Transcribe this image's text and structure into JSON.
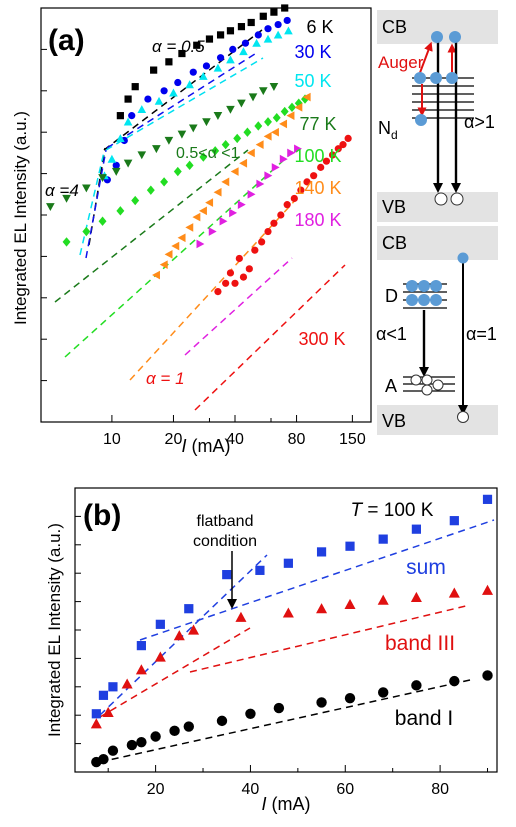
{
  "chart_data": [
    {
      "type": "scatter",
      "panel_label": "(a)",
      "xlabel_italic": "I",
      "xlabel_rest": " (mA)",
      "ylabel": "Integrated EL Intensity (a.u.)",
      "x_scale": "log",
      "xlim": [
        4.5,
        185
      ],
      "ylim": [
        0,
        10
      ],
      "x_ticks": [
        10,
        20,
        40,
        80,
        150
      ],
      "x_tick_labels": [
        "10",
        "20",
        "40",
        "80",
        "150"
      ],
      "series": [
        {
          "name": "6 K",
          "color": "#000000",
          "marker": "square",
          "points": [
            [
              11,
              7.4
            ],
            [
              12,
              7.8
            ],
            [
              13,
              8.1
            ],
            [
              16,
              8.5
            ],
            [
              19,
              8.7
            ],
            [
              22,
              8.9
            ],
            [
              26,
              9.1
            ],
            [
              30,
              9.25
            ],
            [
              34,
              9.35
            ],
            [
              38,
              9.45
            ],
            [
              43,
              9.55
            ],
            [
              48,
              9.65
            ],
            [
              55,
              9.8
            ],
            [
              62,
              9.9
            ],
            [
              70,
              10.0
            ]
          ]
        },
        {
          "name": "30 K",
          "color": "#0000ee",
          "marker": "circle",
          "points": [
            [
              9.5,
              5.85
            ],
            [
              10.5,
              6.2
            ],
            [
              11.5,
              6.8
            ],
            [
              12.5,
              7.4
            ],
            [
              15,
              7.8
            ],
            [
              18,
              8.0
            ],
            [
              21,
              8.2
            ],
            [
              25,
              8.45
            ],
            [
              29,
              8.6
            ],
            [
              34,
              8.8
            ],
            [
              39,
              9.0
            ],
            [
              45,
              9.15
            ],
            [
              52,
              9.35
            ],
            [
              58,
              9.5
            ],
            [
              65,
              9.6
            ],
            [
              72,
              9.7
            ]
          ]
        },
        {
          "name": "50 K",
          "color": "#00e6f0",
          "marker": "triangle-up",
          "points": [
            [
              9.2,
              5.95
            ],
            [
              10,
              6.35
            ],
            [
              11,
              6.85
            ],
            [
              12,
              7.25
            ],
            [
              14,
              7.55
            ],
            [
              17,
              7.75
            ],
            [
              20,
              7.95
            ],
            [
              24,
              8.15
            ],
            [
              28,
              8.35
            ],
            [
              33,
              8.55
            ],
            [
              38,
              8.75
            ],
            [
              44,
              8.95
            ],
            [
              51,
              9.15
            ],
            [
              58,
              9.25
            ],
            [
              65,
              9.35
            ],
            [
              73,
              9.45
            ]
          ]
        },
        {
          "name": "77 K",
          "color": "#1a7a1a",
          "marker": "triangle-down",
          "points": [
            [
              5,
              5.2
            ],
            [
              6,
              5.4
            ],
            [
              7.5,
              5.65
            ],
            [
              9,
              5.9
            ],
            [
              10.5,
              6.05
            ],
            [
              12,
              6.25
            ],
            [
              14,
              6.45
            ],
            [
              16.5,
              6.6
            ],
            [
              19,
              6.8
            ],
            [
              22,
              6.95
            ],
            [
              25,
              7.1
            ],
            [
              29,
              7.25
            ],
            [
              33,
              7.4
            ],
            [
              38,
              7.55
            ],
            [
              43,
              7.7
            ],
            [
              49,
              7.85
            ],
            [
              55,
              8.0
            ],
            [
              62,
              8.1
            ]
          ]
        },
        {
          "name": "100 K",
          "color": "#22dd22",
          "marker": "diamond",
          "points": [
            [
              6,
              4.35
            ],
            [
              7.5,
              4.6
            ],
            [
              9,
              4.85
            ],
            [
              11,
              5.1
            ],
            [
              13,
              5.35
            ],
            [
              15.5,
              5.6
            ],
            [
              18,
              5.8
            ],
            [
              21,
              6.05
            ],
            [
              24,
              6.2
            ],
            [
              28,
              6.4
            ],
            [
              32,
              6.55
            ],
            [
              36,
              6.7
            ],
            [
              41,
              6.85
            ],
            [
              46,
              7.0
            ],
            [
              52,
              7.15
            ],
            [
              58,
              7.25
            ],
            [
              64,
              7.35
            ],
            [
              70,
              7.5
            ],
            [
              76,
              7.6
            ],
            [
              82,
              7.7
            ],
            [
              88,
              7.8
            ]
          ]
        },
        {
          "name": "140 K",
          "color": "#ff8c1a",
          "marker": "triangle-left",
          "points": [
            [
              16.5,
              3.55
            ],
            [
              18,
              3.8
            ],
            [
              19,
              4.05
            ],
            [
              20.5,
              4.25
            ],
            [
              22,
              4.45
            ],
            [
              24,
              4.7
            ],
            [
              26,
              4.95
            ],
            [
              28,
              5.1
            ],
            [
              30,
              5.3
            ],
            [
              33,
              5.55
            ],
            [
              36,
              5.8
            ],
            [
              40,
              6.05
            ],
            [
              44,
              6.25
            ],
            [
              48,
              6.5
            ],
            [
              53,
              6.7
            ],
            [
              58,
              6.9
            ],
            [
              63,
              7.0
            ],
            [
              69,
              7.2
            ],
            [
              75,
              7.4
            ],
            [
              82,
              7.6
            ],
            [
              90,
              7.85
            ]
          ]
        },
        {
          "name": "180 K",
          "color": "#e020e0",
          "marker": "triangle-right",
          "points": [
            [
              27,
              4.3
            ],
            [
              31,
              4.6
            ],
            [
              35,
              4.85
            ],
            [
              39,
              5.05
            ],
            [
              43,
              5.25
            ],
            [
              48,
              5.5
            ],
            [
              53,
              5.75
            ],
            [
              58,
              5.95
            ],
            [
              63,
              6.15
            ],
            [
              69,
              6.35
            ],
            [
              75,
              6.5
            ],
            [
              81,
              6.6
            ]
          ]
        },
        {
          "name": "300 K",
          "color": "#ee1111",
          "marker": "circle",
          "points": [
            [
              33,
              3.15
            ],
            [
              36,
              3.35
            ],
            [
              38,
              3.6
            ],
            [
              40,
              3.35
            ],
            [
              42,
              3.95
            ],
            [
              44,
              3.5
            ],
            [
              47,
              3.7
            ],
            [
              50,
              4.15
            ],
            [
              54,
              4.35
            ],
            [
              58,
              4.6
            ],
            [
              62,
              4.8
            ],
            [
              67,
              5.0
            ],
            [
              72,
              5.25
            ],
            [
              78,
              5.4
            ],
            [
              84,
              5.6
            ],
            [
              90,
              5.8
            ],
            [
              97,
              5.95
            ],
            [
              105,
              6.15
            ],
            [
              112,
              6.3
            ],
            [
              120,
              6.45
            ],
            [
              128,
              6.6
            ],
            [
              135,
              6.7
            ],
            [
              143,
              6.85
            ]
          ]
        }
      ],
      "annotations": [
        "α = 0.5",
        "α =4",
        "0.5<α <1",
        "α = 1"
      ]
    },
    {
      "type": "scatter",
      "panel_label": "(b)",
      "xlabel_italic": "I",
      "xlabel_rest": " (mA)",
      "ylabel": "Integrated EL Intensity (a.u.)",
      "xlim": [
        3,
        92
      ],
      "ylim": [
        0,
        10
      ],
      "x_ticks": [
        20,
        40,
        60,
        80
      ],
      "x_tick_labels": [
        "20",
        "40",
        "60",
        "80"
      ],
      "title_prefix": "T",
      "title_rest": " = 100 K",
      "flatband_label_line1": "flatband",
      "flatband_label_line2": "condition",
      "series": [
        {
          "name": "sum",
          "color": "#1f3fe0",
          "marker": "square",
          "points": [
            [
              7.5,
              2.05
            ],
            [
              9,
              2.7
            ],
            [
              11,
              3.0
            ],
            [
              17,
              4.45
            ],
            [
              21,
              5.2
            ],
            [
              27,
              5.75
            ],
            [
              35,
              6.95
            ],
            [
              42,
              7.1
            ],
            [
              48,
              7.35
            ],
            [
              55,
              7.75
            ],
            [
              61,
              7.95
            ],
            [
              68,
              8.2
            ],
            [
              75,
              8.55
            ],
            [
              83,
              8.85
            ],
            [
              90,
              9.6
            ]
          ]
        },
        {
          "name": "band III",
          "color": "#e01010",
          "marker": "triangle-up",
          "points": [
            [
              7.5,
              1.7
            ],
            [
              10,
              2.1
            ],
            [
              14,
              3.1
            ],
            [
              17,
              3.6
            ],
            [
              21,
              4.05
            ],
            [
              25,
              4.8
            ],
            [
              28,
              5.0
            ],
            [
              38,
              5.45
            ],
            [
              48,
              5.6
            ],
            [
              55,
              5.75
            ],
            [
              61,
              5.9
            ],
            [
              68,
              6.05
            ],
            [
              75,
              6.15
            ],
            [
              83,
              6.3
            ],
            [
              90,
              6.4
            ]
          ]
        },
        {
          "name": "band I",
          "color": "#000000",
          "marker": "circle",
          "points": [
            [
              7.5,
              0.35
            ],
            [
              9,
              0.45
            ],
            [
              11,
              0.75
            ],
            [
              15,
              0.95
            ],
            [
              17,
              1.05
            ],
            [
              20,
              1.25
            ],
            [
              24,
              1.45
            ],
            [
              27,
              1.6
            ],
            [
              34,
              1.8
            ],
            [
              40,
              2.05
            ],
            [
              46,
              2.25
            ],
            [
              55,
              2.45
            ],
            [
              61,
              2.6
            ],
            [
              68,
              2.8
            ],
            [
              75,
              3.05
            ],
            [
              83,
              3.2
            ],
            [
              90,
              3.4
            ]
          ]
        }
      ]
    }
  ],
  "band_diagram": {
    "cb1": "CB",
    "vb1": "VB",
    "cb2": "CB",
    "vb2": "VB",
    "auger": "Auger",
    "nd_main": "N",
    "nd_sub": "d",
    "alpha_gt1": "α>1",
    "d_label": "D",
    "alpha_lt1": "α<1",
    "a_label": "A",
    "alpha_eq1": "α=1"
  }
}
